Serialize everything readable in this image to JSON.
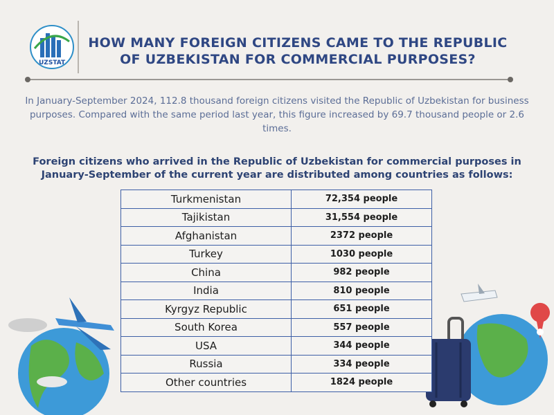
{
  "logo": {
    "text": "UZSTAT"
  },
  "header": {
    "title": "HOW MANY FOREIGN CITIZENS CAME TO THE REPUBLIC OF UZBEKISTAN FOR COMMERCIAL PURPOSES?"
  },
  "intro": "In January-September 2024, 112.8 thousand foreign citizens visited the Republic of Uzbekistan for business purposes. Compared with the same period last year, this figure increased by 69.7 thousand people or 2.6 times.",
  "subtitle": "Foreign citizens who arrived in the Republic of Uzbekistan for commercial purposes in January-September of the current year are distributed among countries as follows:",
  "table": {
    "rows": [
      [
        "Turkmenistan",
        "72,354 people"
      ],
      [
        "Tajikistan",
        "31,554 people"
      ],
      [
        "Afghanistan",
        "2372 people"
      ],
      [
        "Turkey",
        "1030 people"
      ],
      [
        "China",
        "982 people"
      ],
      [
        "India",
        "810 people"
      ],
      [
        "Kyrgyz Republic",
        "651 people"
      ],
      [
        "South Korea",
        "557 people"
      ],
      [
        "USA",
        "344 people"
      ],
      [
        "Russia",
        "334 people"
      ],
      [
        "Other countries",
        "1824 people"
      ]
    ]
  }
}
